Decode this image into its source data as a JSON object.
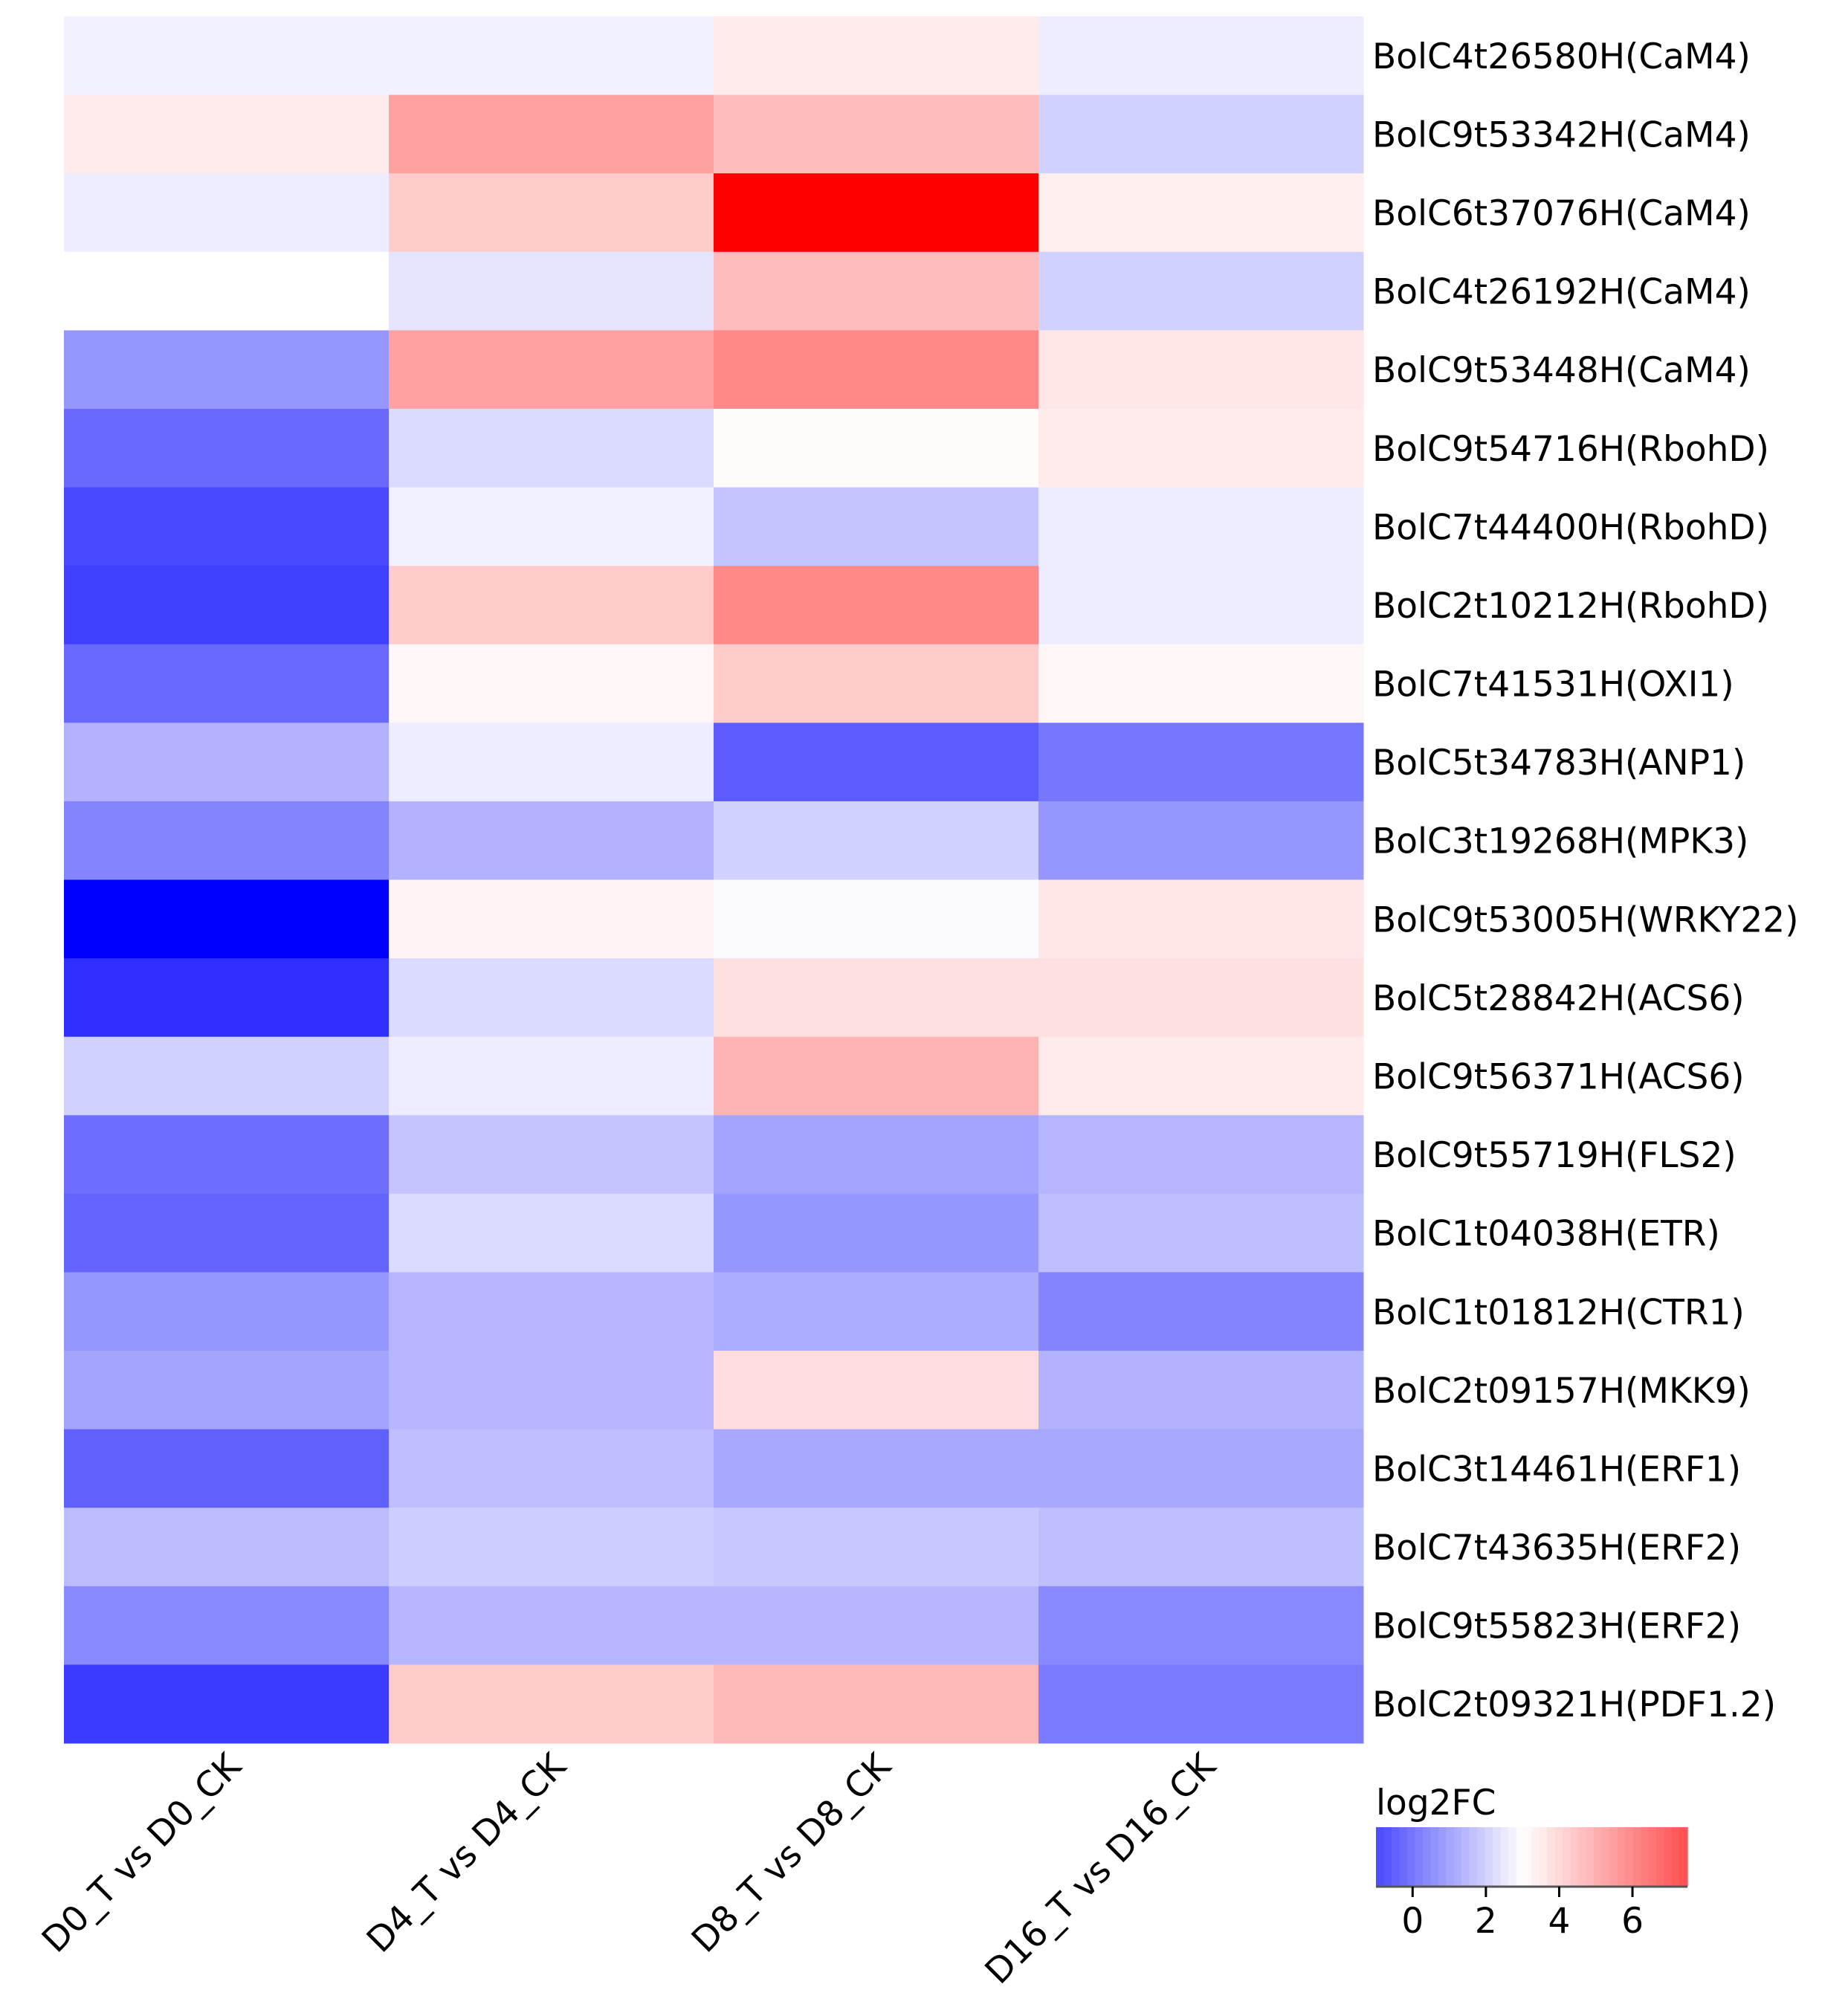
{
  "chart_data": {
    "type": "heatmap",
    "columns": [
      "D0_T vs D0_CK",
      "D4_T vs D4_CK",
      "D8_T vs D8_CK",
      "D16_T vs D16_CK"
    ],
    "rows": [
      "BolC4t26580H(CaM4)",
      "BolC9t53342H(CaM4)",
      "BolC6t37076H(CaM4)",
      "BolC4t26192H(CaM4)",
      "BolC9t53448H(CaM4)",
      "BolC9t54716H(RbohD)",
      "BolC7t44400H(RbohD)",
      "BolC2t10212H(RbohD)",
      "BolC7t41531H(OXI1)",
      "BolC5t34783H(ANP1)",
      "BolC3t19268H(MPK3)",
      "BolC9t53005H(WRKY22)",
      "BolC5t28842H(ACS6)",
      "BolC9t56371H(ACS6)",
      "BolC9t55719H(FLS2)",
      "BolC1t04038H(ETR)",
      "BolC1t01812H(CTR1)",
      "BolC2t09157H(MKK9)",
      "BolC3t14461H(ERF1)",
      "BolC7t43635H(ERF2)",
      "BolC9t55823H(ERF2)",
      "BolC2t09321H(PDF1.2)"
    ],
    "values": [
      [
        2.7,
        2.7,
        3.5,
        2.6
      ],
      [
        3.5,
        5.4,
        4.7,
        2.0
      ],
      [
        2.6,
        4.3,
        9.5,
        3.4
      ],
      [
        3.0,
        2.4,
        4.7,
        2.0
      ],
      [
        0.7,
        5.4,
        6.0,
        3.6
      ],
      [
        -0.3,
        2.2,
        3.1,
        3.5
      ],
      [
        -1.0,
        2.7,
        1.7,
        2.6
      ],
      [
        -1.2,
        4.3,
        6.0,
        2.6
      ],
      [
        -0.3,
        3.2,
        4.3,
        3.2
      ],
      [
        1.3,
        2.6,
        -0.6,
        0.0
      ],
      [
        0.3,
        1.3,
        2.0,
        0.7
      ],
      [
        -2.6,
        3.3,
        2.9,
        3.6
      ],
      [
        -1.6,
        2.2,
        3.8,
        3.8
      ],
      [
        2.0,
        2.6,
        4.9,
        3.5
      ],
      [
        -0.2,
        1.7,
        1.0,
        1.4
      ],
      [
        -0.4,
        2.2,
        0.7,
        1.6
      ],
      [
        0.7,
        1.4,
        1.2,
        0.3
      ],
      [
        1.0,
        1.4,
        3.9,
        1.3
      ],
      [
        -0.5,
        1.6,
        1.1,
        1.1
      ],
      [
        1.5,
        1.9,
        1.8,
        1.6
      ],
      [
        0.4,
        1.4,
        1.4,
        0.4
      ],
      [
        -1.3,
        4.3,
        4.8,
        0.1
      ]
    ],
    "color_scale": {
      "title": "log2FC",
      "min": -2.6,
      "center": 3.0,
      "max": 9.5,
      "low_color": "#0000ff",
      "mid_color": "#ffffff",
      "high_color": "#ff0000",
      "colorbar_range": [
        -1.0,
        7.5
      ],
      "ticks": [
        0,
        2,
        4,
        6
      ]
    },
    "xlabel": "",
    "ylabel": ""
  }
}
